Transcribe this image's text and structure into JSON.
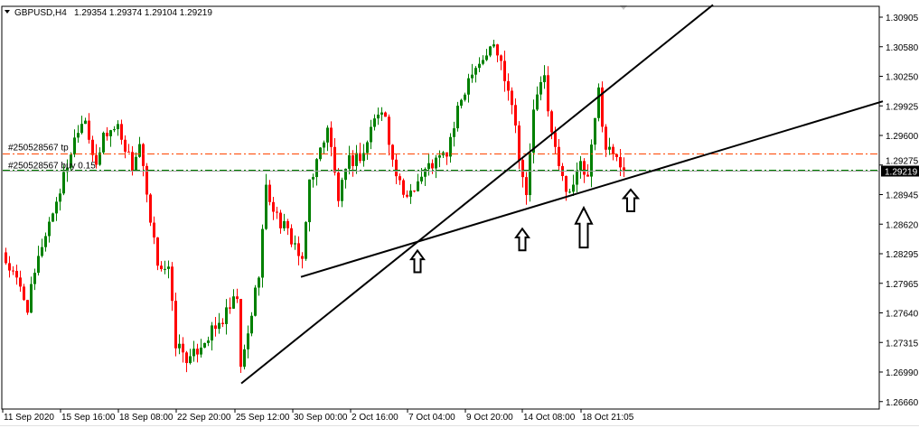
{
  "header": {
    "symbol": "GBPUSD,H4",
    "ohlc": "1.29354 1.29374 1.29104 1.29219"
  },
  "colors": {
    "bull": "#008000",
    "bear": "#FF0000",
    "tp_line": "#FF4500",
    "buy_line": "#008000",
    "price_line": "#A0A0A0",
    "trendline": "#000000",
    "current_price_bg": "#000000"
  },
  "orders": {
    "tp_label": "#250528567 tp",
    "buy_label": "#250528567 buy 0.15",
    "tp_price": 1.2941,
    "buy_price": 1.29219
  },
  "current_price": "1.29219",
  "chart_data": {
    "type": "candlestick",
    "timeframe": "H4",
    "ylim": [
      1.2645,
      1.311
    ],
    "grid": false,
    "y_ticks": [
      "1.30905",
      "1.30580",
      "1.30250",
      "1.29925",
      "1.29600",
      "1.29275",
      "1.28945",
      "1.28620",
      "1.28295",
      "1.27965",
      "1.27640",
      "1.27315",
      "1.26990",
      "1.26660"
    ],
    "x_ticks": [
      "11 Sep 2020",
      "15 Sep 16:00",
      "18 Sep 08:00",
      "22 Sep 20:00",
      "25 Sep 12:00",
      "30 Sep 00:00",
      "2 Oct 16:00",
      "7 Oct 04:00",
      "9 Oct 20:00",
      "14 Oct 08:00",
      "18 Oct 21:05"
    ],
    "close_path": [
      [
        0,
        1.2822
      ],
      [
        4,
        1.2792
      ],
      [
        6,
        1.2772
      ],
      [
        10,
        1.2841
      ],
      [
        15,
        1.2901
      ],
      [
        20,
        1.2971
      ],
      [
        22,
        1.2981
      ],
      [
        25,
        1.2921
      ],
      [
        27,
        1.2961
      ],
      [
        31,
        1.2971
      ],
      [
        35,
        1.2926
      ],
      [
        37,
        1.2951
      ],
      [
        40,
        1.2861
      ],
      [
        42,
        1.2822
      ],
      [
        45,
        1.2812
      ],
      [
        47,
        1.2732
      ],
      [
        51,
        1.2712
      ],
      [
        54,
        1.2732
      ],
      [
        59,
        1.2752
      ],
      [
        64,
        1.2782
      ],
      [
        65,
        1.2702
      ],
      [
        67,
        1.2742
      ],
      [
        70,
        1.2812
      ],
      [
        72,
        1.2901
      ],
      [
        75,
        1.2871
      ],
      [
        80,
        1.2841
      ],
      [
        82,
        1.2817
      ],
      [
        84,
        1.2911
      ],
      [
        86,
        1.2931
      ],
      [
        89,
        1.2971
      ],
      [
        92,
        1.2891
      ],
      [
        95,
        1.2931
      ],
      [
        99,
        1.2941
      ],
      [
        102,
        1.2981
      ],
      [
        105,
        1.2985
      ],
      [
        107,
        1.2931
      ],
      [
        110,
        1.2891
      ],
      [
        114,
        1.2911
      ],
      [
        117,
        1.2926
      ],
      [
        122,
        1.2941
      ],
      [
        126,
        1.3
      ],
      [
        129,
        1.3035
      ],
      [
        132,
        1.3045
      ],
      [
        135,
        1.306
      ],
      [
        137,
        1.304
      ],
      [
        140,
        1.3
      ],
      [
        142,
        1.2941
      ],
      [
        144,
        1.2891
      ],
      [
        146,
        1.299
      ],
      [
        149,
        1.3025
      ],
      [
        151,
        1.2961
      ],
      [
        154,
        1.2911
      ],
      [
        156,
        1.2901
      ],
      [
        159,
        1.2926
      ],
      [
        161,
        1.2911
      ],
      [
        164,
        1.301
      ],
      [
        166,
        1.2946
      ],
      [
        169,
        1.2941
      ],
      [
        171,
        1.2922
      ]
    ],
    "trendlines": [
      {
        "from": [
          65.5,
          1.2688
        ],
        "to": [
          196,
          1.3104
        ]
      },
      {
        "from": [
          82,
          1.2805
        ],
        "to": [
          243,
          1.2998
        ]
      }
    ],
    "arrows": [
      {
        "bar": 114,
        "price": 1.2834,
        "size": "small"
      },
      {
        "bar": 143,
        "price": 1.2858,
        "size": "small"
      },
      {
        "bar": 160,
        "price": 1.2881,
        "size": "large"
      },
      {
        "bar": 173,
        "price": 1.2901,
        "size": "medium"
      }
    ]
  }
}
